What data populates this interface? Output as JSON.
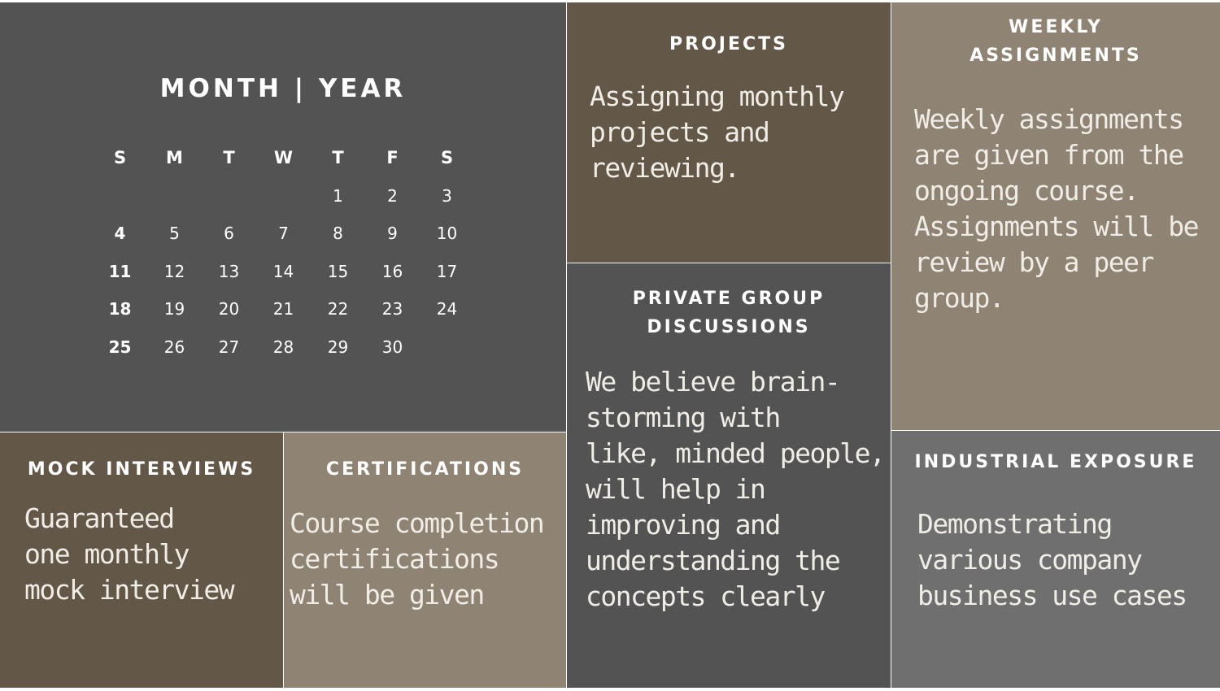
{
  "calendar": {
    "title": "MONTH | YEAR",
    "weekdays": [
      "S",
      "M",
      "T",
      "W",
      "T",
      "F",
      "S"
    ],
    "weeks": [
      [
        "",
        "",
        "",
        "",
        "1",
        "2",
        "3"
      ],
      [
        "4",
        "5",
        "6",
        "7",
        "8",
        "9",
        "10"
      ],
      [
        "11",
        "12",
        "13",
        "14",
        "15",
        "16",
        "17"
      ],
      [
        "18",
        "19",
        "20",
        "21",
        "22",
        "23",
        "24"
      ],
      [
        "25",
        "26",
        "27",
        "28",
        "29",
        "30",
        ""
      ]
    ]
  },
  "projects": {
    "heading": "PROJECTS",
    "text": "Assigning monthly\nprojects and\nreviewing."
  },
  "weekly": {
    "heading": "WEEKLY\nASSIGNMENTS",
    "text": "Weekly assignments\nare given from the\nongoing course.\nAssignments will be\nreview by a peer\ngroup."
  },
  "private_group": {
    "heading": "PRIVATE GROUP\nDISCUSSIONS",
    "text": "We believe brain-\nstorming with\nlike, minded people,\nwill help in\nimproving and\nunderstanding the\nconcepts clearly"
  },
  "mock": {
    "heading": "MOCK INTERVIEWS",
    "text": "Guaranteed\none monthly\nmock interview"
  },
  "certifications": {
    "heading": "CERTIFICATIONS",
    "text": "Course completion\ncertifications\nwill be given"
  },
  "industrial": {
    "heading": "INDUSTRIAL EXPOSURE",
    "text": "Demonstrating\nvarious company\nbusiness use cases"
  },
  "colors": {
    "charcoal": "#535353",
    "dark_brown": "#635747",
    "taupe": "#8f8473",
    "gray": "#6f6f6f"
  }
}
